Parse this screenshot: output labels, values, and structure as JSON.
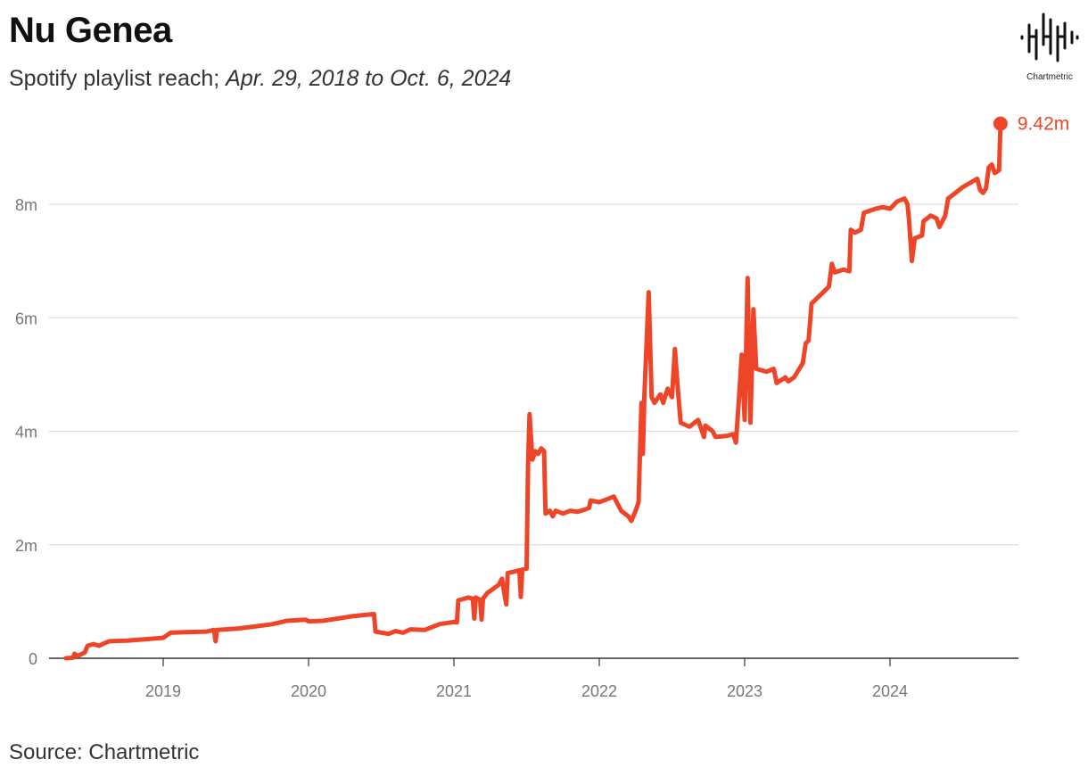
{
  "header": {
    "title": "Nu Genea",
    "subtitle_prefix": "Spotify playlist reach;",
    "subtitle_range": "Apr. 29, 2018 to Oct. 6, 2024"
  },
  "footer": {
    "source": "Source: Chartmetric"
  },
  "logo": {
    "text": "Chartmetric"
  },
  "colors": {
    "line": "#ee4528",
    "grid": "#dddddd",
    "axis": "#333333"
  },
  "chart_data": {
    "type": "line",
    "title": "Nu Genea",
    "xlabel": "",
    "ylabel": "",
    "x_range": [
      2018.33,
      2024.77
    ],
    "ylim": [
      0,
      9.6
    ],
    "y_ticks": [
      {
        "value": 0,
        "label": "0"
      },
      {
        "value": 2,
        "label": "2m"
      },
      {
        "value": 4,
        "label": "4m"
      },
      {
        "value": 6,
        "label": "6m"
      },
      {
        "value": 8,
        "label": "8m"
      }
    ],
    "x_ticks": [
      {
        "value": 2019,
        "label": "2019"
      },
      {
        "value": 2020,
        "label": "2020"
      },
      {
        "value": 2021,
        "label": "2021"
      },
      {
        "value": 2022,
        "label": "2022"
      },
      {
        "value": 2023,
        "label": "2023"
      },
      {
        "value": 2024,
        "label": "2024"
      }
    ],
    "end_label": "9.42m",
    "series": [
      {
        "name": "Spotify playlist reach (millions)",
        "points": [
          [
            2018.33,
            0.0
          ],
          [
            2018.38,
            0.01
          ],
          [
            2018.39,
            0.08
          ],
          [
            2018.41,
            0.04
          ],
          [
            2018.46,
            0.1
          ],
          [
            2018.48,
            0.22
          ],
          [
            2018.52,
            0.25
          ],
          [
            2018.56,
            0.22
          ],
          [
            2018.6,
            0.27
          ],
          [
            2018.63,
            0.3
          ],
          [
            2018.75,
            0.31
          ],
          [
            2018.85,
            0.33
          ],
          [
            2019.0,
            0.36
          ],
          [
            2019.05,
            0.45
          ],
          [
            2019.15,
            0.46
          ],
          [
            2019.3,
            0.47
          ],
          [
            2019.35,
            0.5
          ],
          [
            2019.36,
            0.3
          ],
          [
            2019.37,
            0.5
          ],
          [
            2019.5,
            0.52
          ],
          [
            2019.6,
            0.55
          ],
          [
            2019.75,
            0.6
          ],
          [
            2019.85,
            0.66
          ],
          [
            2019.98,
            0.68
          ],
          [
            2020.0,
            0.65
          ],
          [
            2020.1,
            0.66
          ],
          [
            2020.2,
            0.7
          ],
          [
            2020.3,
            0.74
          ],
          [
            2020.45,
            0.78
          ],
          [
            2020.46,
            0.47
          ],
          [
            2020.55,
            0.43
          ],
          [
            2020.6,
            0.48
          ],
          [
            2020.65,
            0.45
          ],
          [
            2020.7,
            0.51
          ],
          [
            2020.8,
            0.5
          ],
          [
            2020.85,
            0.55
          ],
          [
            2020.9,
            0.6
          ],
          [
            2021.0,
            0.64
          ],
          [
            2021.02,
            0.63
          ],
          [
            2021.03,
            1.02
          ],
          [
            2021.1,
            1.07
          ],
          [
            2021.13,
            1.05
          ],
          [
            2021.14,
            0.7
          ],
          [
            2021.15,
            1.07
          ],
          [
            2021.18,
            1.03
          ],
          [
            2021.19,
            0.68
          ],
          [
            2021.2,
            1.05
          ],
          [
            2021.23,
            1.15
          ],
          [
            2021.3,
            1.28
          ],
          [
            2021.31,
            1.3
          ],
          [
            2021.33,
            1.4
          ],
          [
            2021.36,
            0.95
          ],
          [
            2021.37,
            1.5
          ],
          [
            2021.45,
            1.55
          ],
          [
            2021.46,
            1.08
          ],
          [
            2021.47,
            1.56
          ],
          [
            2021.5,
            1.58
          ],
          [
            2021.51,
            3.4
          ],
          [
            2021.52,
            4.3
          ],
          [
            2021.54,
            3.5
          ],
          [
            2021.56,
            3.65
          ],
          [
            2021.58,
            3.6
          ],
          [
            2021.6,
            3.7
          ],
          [
            2021.62,
            3.65
          ],
          [
            2021.63,
            2.55
          ],
          [
            2021.66,
            2.6
          ],
          [
            2021.68,
            2.5
          ],
          [
            2021.7,
            2.6
          ],
          [
            2021.75,
            2.55
          ],
          [
            2021.8,
            2.6
          ],
          [
            2021.85,
            2.58
          ],
          [
            2021.9,
            2.62
          ],
          [
            2021.93,
            2.65
          ],
          [
            2021.94,
            2.78
          ],
          [
            2022.0,
            2.75
          ],
          [
            2022.05,
            2.8
          ],
          [
            2022.1,
            2.85
          ],
          [
            2022.15,
            2.6
          ],
          [
            2022.2,
            2.5
          ],
          [
            2022.22,
            2.42
          ],
          [
            2022.25,
            2.6
          ],
          [
            2022.27,
            2.75
          ],
          [
            2022.29,
            4.5
          ],
          [
            2022.3,
            3.6
          ],
          [
            2022.31,
            4.6
          ],
          [
            2022.34,
            6.45
          ],
          [
            2022.36,
            4.6
          ],
          [
            2022.38,
            4.5
          ],
          [
            2022.42,
            4.65
          ],
          [
            2022.44,
            4.5
          ],
          [
            2022.47,
            4.75
          ],
          [
            2022.5,
            4.6
          ],
          [
            2022.52,
            5.45
          ],
          [
            2022.54,
            4.75
          ],
          [
            2022.56,
            4.15
          ],
          [
            2022.62,
            4.08
          ],
          [
            2022.68,
            4.2
          ],
          [
            2022.72,
            3.9
          ],
          [
            2022.73,
            4.1
          ],
          [
            2022.78,
            4.0
          ],
          [
            2022.8,
            3.9
          ],
          [
            2022.88,
            3.92
          ],
          [
            2022.92,
            3.95
          ],
          [
            2022.94,
            3.8
          ],
          [
            2022.96,
            4.55
          ],
          [
            2022.98,
            5.35
          ],
          [
            2023.0,
            4.2
          ],
          [
            2023.02,
            6.7
          ],
          [
            2023.04,
            4.15
          ],
          [
            2023.06,
            6.15
          ],
          [
            2023.08,
            5.1
          ],
          [
            2023.15,
            5.05
          ],
          [
            2023.2,
            5.1
          ],
          [
            2023.22,
            4.85
          ],
          [
            2023.28,
            4.95
          ],
          [
            2023.3,
            4.88
          ],
          [
            2023.34,
            4.95
          ],
          [
            2023.4,
            5.2
          ],
          [
            2023.42,
            5.55
          ],
          [
            2023.44,
            5.6
          ],
          [
            2023.46,
            6.25
          ],
          [
            2023.52,
            6.4
          ],
          [
            2023.58,
            6.55
          ],
          [
            2023.6,
            6.95
          ],
          [
            2023.62,
            6.8
          ],
          [
            2023.68,
            6.85
          ],
          [
            2023.72,
            6.82
          ],
          [
            2023.73,
            7.55
          ],
          [
            2023.76,
            7.5
          ],
          [
            2023.8,
            7.55
          ],
          [
            2023.82,
            7.85
          ],
          [
            2023.9,
            7.92
          ],
          [
            2023.95,
            7.95
          ],
          [
            2024.0,
            7.92
          ],
          [
            2024.05,
            8.05
          ],
          [
            2024.1,
            8.1
          ],
          [
            2024.12,
            8.0
          ],
          [
            2024.13,
            7.75
          ],
          [
            2024.15,
            7.0
          ],
          [
            2024.17,
            7.4
          ],
          [
            2024.22,
            7.45
          ],
          [
            2024.23,
            7.7
          ],
          [
            2024.28,
            7.8
          ],
          [
            2024.32,
            7.75
          ],
          [
            2024.34,
            7.6
          ],
          [
            2024.38,
            7.8
          ],
          [
            2024.4,
            8.1
          ],
          [
            2024.5,
            8.3
          ],
          [
            2024.6,
            8.45
          ],
          [
            2024.62,
            8.25
          ],
          [
            2024.64,
            8.2
          ],
          [
            2024.66,
            8.28
          ],
          [
            2024.68,
            8.65
          ],
          [
            2024.7,
            8.7
          ],
          [
            2024.72,
            8.55
          ],
          [
            2024.75,
            8.6
          ],
          [
            2024.76,
            9.42
          ]
        ]
      }
    ]
  }
}
